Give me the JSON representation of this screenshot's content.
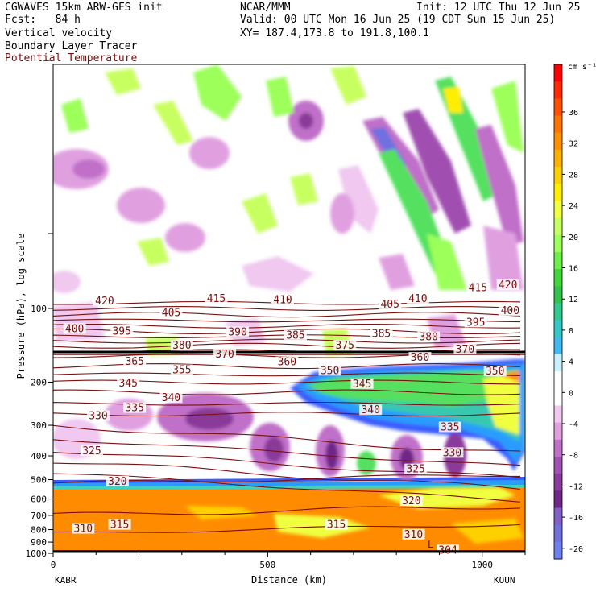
{
  "header": {
    "model_line": "CGWAVES 15km ARW-GFS init",
    "forecast_line": "Fcst:   84 h",
    "field1": "Vertical velocity",
    "field2": "Boundary Layer Tracer",
    "field3": "Potential Temperature",
    "org": "NCAR/MMM",
    "init": "Init: 12 UTC Thu 12 Jun 25",
    "valid": "Valid: 00 UTC Mon 16 Jun 25 (19 CDT Sun 15 Jun 25)",
    "xy": "XY= 187.4,173.8 to 191.8,100.1"
  },
  "colors": {
    "theta_contour": "#7a1010",
    "theta_label": "#7a1010"
  },
  "chart_data": {
    "type": "cross-section",
    "xlabel": "Distance (km)",
    "ylabel": "Pressure (hPa), log scale",
    "x_ticks": [
      "0",
      "500",
      "1000"
    ],
    "x_tick_values": [
      0,
      500,
      1000
    ],
    "xlim": [
      0,
      1100
    ],
    "left_station": "KABR",
    "right_station": "KOUN",
    "y_scale": "log",
    "y_ticks": [
      "100",
      "200",
      "300",
      "400",
      "500",
      "600",
      "700",
      "800",
      "900",
      "1000"
    ],
    "y_tick_values": [
      100,
      200,
      300,
      400,
      500,
      600,
      700,
      800,
      900,
      1000
    ],
    "colorbar": {
      "unit": "cm s⁻¹",
      "labels": [
        "36",
        "32",
        "28",
        "24",
        "20",
        "16",
        "12",
        "8",
        "4",
        "0",
        "-4",
        "-8",
        "-12",
        "-16",
        "-20"
      ],
      "colors": [
        "#ff0000",
        "#ff2a00",
        "#ff5000",
        "#ff7400",
        "#ff9000",
        "#ffb000",
        "#ffd000",
        "#ffee00",
        "#f0ff40",
        "#c8ff60",
        "#9cff5a",
        "#6ef04a",
        "#40d838",
        "#33c24a",
        "#33c890",
        "#33c8c8",
        "#40b8f0",
        "#c8f0ff",
        "#ffffff",
        "#ffffff",
        "#f0c8f0",
        "#e0a0e0",
        "#c070c8",
        "#a050b0",
        "#8a3a9a",
        "#702888",
        "#8060c8",
        "#7070e0",
        "#6e80f0"
      ]
    },
    "theta_labels": [
      "420",
      "415",
      "410",
      "405",
      "420",
      "415",
      "410",
      "405",
      "400",
      "400",
      "395",
      "390",
      "385",
      "395",
      "385",
      "380",
      "375",
      "380",
      "370",
      "370",
      "365",
      "360",
      "360",
      "350",
      "355",
      "350",
      "345",
      "345",
      "340",
      "340",
      "335",
      "330",
      "335",
      "330",
      "325",
      "325",
      "320",
      "320",
      "315",
      "315",
      "310",
      "310",
      "304"
    ],
    "theta_label_points": [
      {
        "t": "420",
        "x": 120,
        "p": 94
      },
      {
        "t": "415",
        "x": 380,
        "p": 92
      },
      {
        "t": "410",
        "x": 535,
        "p": 93
      },
      {
        "t": "405",
        "x": 275,
        "p": 105
      },
      {
        "t": "405",
        "x": 785,
        "p": 97
      },
      {
        "t": "410",
        "x": 850,
        "p": 92
      },
      {
        "t": "415",
        "x": 990,
        "p": 83
      },
      {
        "t": "420",
        "x": 1060,
        "p": 81
      },
      {
        "t": "400",
        "x": 50,
        "p": 122
      },
      {
        "t": "395",
        "x": 160,
        "p": 125
      },
      {
        "t": "390",
        "x": 430,
        "p": 126
      },
      {
        "t": "385",
        "x": 565,
        "p": 130
      },
      {
        "t": "385",
        "x": 765,
        "p": 128
      },
      {
        "t": "380",
        "x": 875,
        "p": 132
      },
      {
        "t": "395",
        "x": 985,
        "p": 115
      },
      {
        "t": "400",
        "x": 1065,
        "p": 103
      },
      {
        "t": "380",
        "x": 300,
        "p": 143
      },
      {
        "t": "370",
        "x": 400,
        "p": 155
      },
      {
        "t": "375",
        "x": 680,
        "p": 143
      },
      {
        "t": "370",
        "x": 960,
        "p": 148
      },
      {
        "t": "365",
        "x": 190,
        "p": 166
      },
      {
        "t": "360",
        "x": 545,
        "p": 167
      },
      {
        "t": "360",
        "x": 855,
        "p": 160
      },
      {
        "t": "355",
        "x": 300,
        "p": 180
      },
      {
        "t": "350",
        "x": 645,
        "p": 181
      },
      {
        "t": "350",
        "x": 1030,
        "p": 182
      },
      {
        "t": "345",
        "x": 175,
        "p": 204
      },
      {
        "t": "345",
        "x": 720,
        "p": 205
      },
      {
        "t": "340",
        "x": 275,
        "p": 234
      },
      {
        "t": "340",
        "x": 740,
        "p": 262
      },
      {
        "t": "335",
        "x": 190,
        "p": 257
      },
      {
        "t": "330",
        "x": 105,
        "p": 277
      },
      {
        "t": "335",
        "x": 925,
        "p": 308
      },
      {
        "t": "330",
        "x": 930,
        "p": 392
      },
      {
        "t": "325",
        "x": 90,
        "p": 385
      },
      {
        "t": "325",
        "x": 845,
        "p": 457
      },
      {
        "t": "320",
        "x": 150,
        "p": 513
      },
      {
        "t": "320",
        "x": 835,
        "p": 616
      },
      {
        "t": "315",
        "x": 155,
        "p": 771
      },
      {
        "t": "315",
        "x": 660,
        "p": 771
      },
      {
        "t": "310",
        "x": 70,
        "p": 800
      },
      {
        "t": "310",
        "x": 840,
        "p": 845
      },
      {
        "t": "304",
        "x": 920,
        "p": 980
      }
    ]
  }
}
